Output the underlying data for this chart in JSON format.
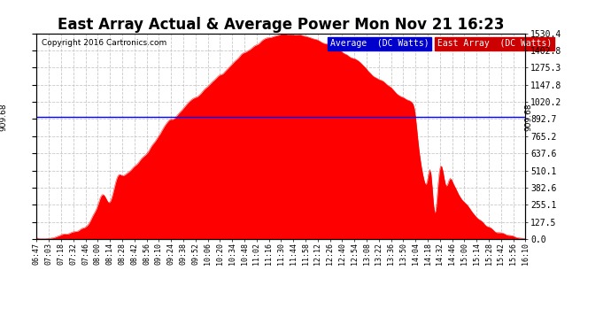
{
  "title": "East Array Actual & Average Power Mon Nov 21 16:23",
  "copyright": "Copyright 2016 Cartronics.com",
  "legend_labels": [
    "Average  (DC Watts)",
    "East Array  (DC Watts)"
  ],
  "legend_colors_bg": [
    "#0000cc",
    "#cc0000"
  ],
  "average_value": 909.68,
  "ymax": 1530.4,
  "yticks": [
    0.0,
    127.5,
    255.1,
    382.6,
    510.1,
    637.6,
    765.2,
    892.7,
    1020.2,
    1147.8,
    1275.3,
    1402.8,
    1530.4
  ],
  "background_color": "#ffffff",
  "fill_color": "#ff0000",
  "avg_line_color": "#0000ff",
  "grid_color": "#bbbbbb",
  "title_fontsize": 12,
  "time_labels": [
    "06:47",
    "07:03",
    "07:18",
    "07:32",
    "07:46",
    "08:00",
    "08:14",
    "08:28",
    "08:42",
    "08:56",
    "09:10",
    "09:24",
    "09:38",
    "09:52",
    "10:06",
    "10:20",
    "10:34",
    "10:48",
    "11:02",
    "11:16",
    "11:30",
    "11:44",
    "11:58",
    "12:12",
    "12:26",
    "12:40",
    "12:54",
    "13:08",
    "13:22",
    "13:36",
    "13:50",
    "14:04",
    "14:18",
    "14:32",
    "14:46",
    "15:00",
    "15:14",
    "15:28",
    "15:42",
    "15:56",
    "16:10"
  ]
}
